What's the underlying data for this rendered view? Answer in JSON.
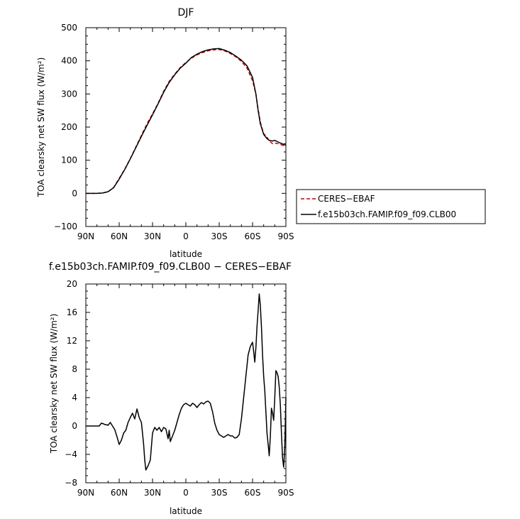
{
  "chart_data": [
    {
      "type": "line",
      "title": "DJF",
      "xlabel": "latitude",
      "ylabel": "TOA clearsky net SW flux (W/m²)",
      "xlim": [
        90,
        -90
      ],
      "ylim": [
        -100,
        500
      ],
      "x_ticks": [
        90,
        60,
        30,
        0,
        -30,
        -60,
        -90
      ],
      "x_tick_labels": [
        "90N",
        "60N",
        "30N",
        "0",
        "30S",
        "60S",
        "90S"
      ],
      "y_ticks": [
        -100,
        0,
        100,
        200,
        300,
        400,
        500
      ],
      "y_tick_labels": [
        "−100",
        "0",
        "100",
        "200",
        "300",
        "400",
        "500"
      ],
      "legend": {
        "placement": "right",
        "entries": [
          "CERES−EBAF",
          "f.e15b03ch.FAMIP.f09_f09.CLB00"
        ]
      },
      "series": [
        {
          "name": "CERES−EBAF",
          "color": "#cc0000",
          "style": "dashed",
          "x": [
            90,
            85,
            80,
            75,
            70,
            65,
            60,
            55,
            50,
            45,
            40,
            35,
            30,
            25,
            20,
            15,
            10,
            5,
            0,
            -5,
            -10,
            -15,
            -20,
            -25,
            -30,
            -35,
            -40,
            -45,
            -50,
            -55,
            -60,
            -63,
            -65,
            -67,
            -70,
            -73,
            -75,
            -78,
            -80,
            -83,
            -85,
            -88,
            -90
          ],
          "y": [
            0,
            0,
            0,
            1,
            5,
            18,
            45,
            73,
            105,
            140,
            175,
            210,
            240,
            272,
            308,
            338,
            360,
            380,
            395,
            408,
            418,
            425,
            430,
            433,
            434,
            430,
            422,
            412,
            398,
            378,
            340,
            300,
            255,
            215,
            180,
            170,
            158,
            150,
            152,
            150,
            148,
            144,
            140
          ]
        },
        {
          "name": "f.e15b03ch.FAMIP.f09_f09.CLB00",
          "color": "#000000",
          "style": "solid",
          "x": [
            90,
            85,
            80,
            75,
            70,
            65,
            60,
            55,
            50,
            45,
            40,
            35,
            30,
            25,
            20,
            15,
            10,
            5,
            0,
            -5,
            -10,
            -15,
            -20,
            -25,
            -30,
            -35,
            -40,
            -45,
            -50,
            -55,
            -60,
            -63,
            -65,
            -67,
            -70,
            -73,
            -75,
            -78,
            -80,
            -83,
            -85,
            -88,
            -90
          ],
          "y": [
            0,
            0,
            0,
            1,
            5,
            17,
            43,
            72,
            104,
            138,
            172,
            205,
            237,
            270,
            305,
            335,
            358,
            378,
            393,
            410,
            420,
            428,
            433,
            436,
            437,
            432,
            425,
            414,
            402,
            385,
            350,
            300,
            250,
            210,
            178,
            165,
            160,
            158,
            160,
            155,
            152,
            148,
            145
          ]
        }
      ]
    },
    {
      "type": "line",
      "title": "f.e15b03ch.FAMIP.f09_f09.CLB00 − CERES−EBAF",
      "xlabel": "latitude",
      "ylabel": "TOA clearsky net SW flux (W/m²)",
      "xlim": [
        90,
        -90
      ],
      "ylim": [
        -8,
        20
      ],
      "x_ticks": [
        90,
        60,
        30,
        0,
        -30,
        -60,
        -90
      ],
      "x_tick_labels": [
        "90N",
        "60N",
        "30N",
        "0",
        "30S",
        "60S",
        "90S"
      ],
      "y_ticks": [
        -8,
        -4,
        0,
        4,
        8,
        12,
        16,
        20
      ],
      "y_tick_labels": [
        "−8",
        "−4",
        "0",
        "4",
        "8",
        "12",
        "16",
        "20"
      ],
      "series": [
        {
          "name": "f.e15b03ch.FAMIP.f09_f09.CLB00 − CERES−EBAF",
          "color": "#000000",
          "style": "solid",
          "x": [
            90,
            88,
            85,
            82,
            80,
            78,
            76,
            74,
            73,
            72,
            70,
            68,
            66,
            64,
            62,
            60,
            58,
            56,
            54,
            52,
            50,
            48,
            46,
            44,
            42,
            40,
            38,
            37,
            36,
            34,
            32,
            30,
            28,
            26,
            24,
            22,
            20,
            18,
            16,
            15,
            14,
            12,
            10,
            8,
            6,
            4,
            2,
            0,
            -2,
            -4,
            -6,
            -8,
            -10,
            -12,
            -14,
            -16,
            -18,
            -20,
            -22,
            -24,
            -26,
            -28,
            -30,
            -32,
            -34,
            -36,
            -38,
            -40,
            -42,
            -44,
            -46,
            -48,
            -50,
            -52,
            -54,
            -56,
            -58,
            -60,
            -61,
            -62,
            -63,
            -64,
            -65,
            -66,
            -67,
            -68,
            -69,
            -70,
            -71,
            -72,
            -73,
            -74,
            -75,
            -76,
            -77,
            -78,
            -79,
            -80,
            -81,
            -82,
            -83,
            -84,
            -85,
            -86,
            -87,
            -88,
            -89,
            -90
          ],
          "y": [
            0,
            0,
            0,
            0,
            0,
            0,
            0.4,
            0.3,
            0.2,
            0.2,
            0.1,
            0.5,
            0,
            -0.5,
            -1.5,
            -2.6,
            -2.0,
            -1.0,
            -0.6,
            0.5,
            1.2,
            1.8,
            1.0,
            2.4,
            1.2,
            0.5,
            -2.6,
            -4.8,
            -6.2,
            -5.6,
            -4.8,
            -1.0,
            -0.2,
            -0.6,
            -0.2,
            -0.8,
            -0.2,
            -0.4,
            -1.8,
            -0.6,
            -2.2,
            -1.4,
            -0.6,
            0.5,
            1.6,
            2.5,
            3.0,
            3.2,
            3.0,
            2.8,
            3.2,
            3.0,
            2.6,
            3.0,
            3.3,
            3.1,
            3.4,
            3.5,
            3.2,
            2.0,
            0.4,
            -0.6,
            -1.2,
            -1.4,
            -1.6,
            -1.4,
            -1.2,
            -1.4,
            -1.4,
            -1.7,
            -1.6,
            -1.2,
            1.0,
            4.0,
            7.0,
            10.0,
            11.2,
            11.8,
            10.5,
            9.0,
            11.0,
            14.0,
            16.2,
            18.6,
            17.0,
            14.0,
            10.0,
            7.0,
            5.0,
            2.0,
            -1.0,
            -2.5,
            -4.2,
            -1.5,
            2.5,
            1.8,
            0.8,
            4.0,
            7.8,
            7.5,
            7.0,
            5.5,
            3.0,
            -1.0,
            -4.5,
            -5.8,
            -3.0,
            4.0
          ]
        }
      ]
    }
  ]
}
